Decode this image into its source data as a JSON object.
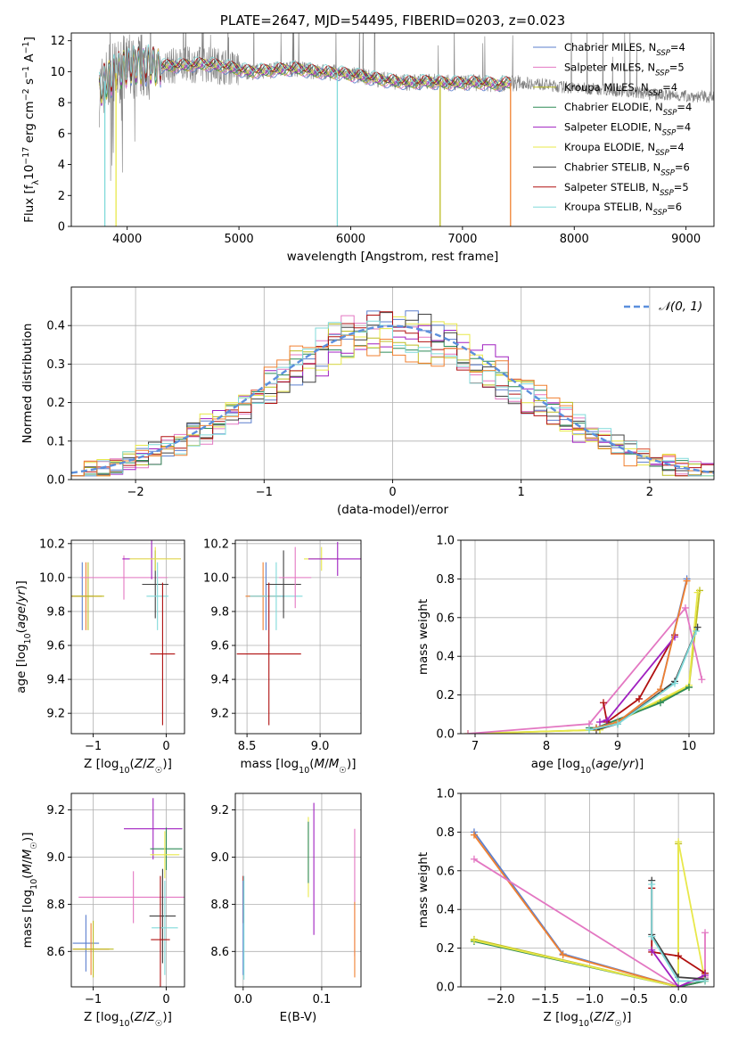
{
  "colors": {
    "Chabrier MILES": "#5b7fce",
    "Salpeter MILES": "#e377c2",
    "Kroupa MILES": "#bcbd22",
    "Chabrier ELODIE": "#2e8b57",
    "Salpeter ELODIE": "#a020c0",
    "Kroupa ELODIE": "#e8e84a",
    "Chabrier STELIB": "#404040",
    "Salpeter STELIB": "#b01010",
    "Kroupa STELIB": "#80dada",
    "observed": "#808080",
    "normal_curve": "#5b8fdd",
    "extra_orange": "#f08030"
  },
  "chart_data": [
    {
      "id": "spectrum",
      "type": "line",
      "title": "PLATE=2647, MJD=54495, FIBERID=0203, z=0.023",
      "xlabel": "wavelength [Angstrom, rest frame]",
      "ylabel": "Flux [f_λ 10^-17 erg cm^-2 s^-1 A^-1]",
      "xlim": [
        3500,
        9250
      ],
      "ylim": [
        0,
        12.5
      ],
      "xticks": [
        "4000",
        "5000",
        "6000",
        "7000",
        "8000",
        "9000"
      ],
      "yticks": [
        "0",
        "2",
        "4",
        "6",
        "8",
        "10",
        "12"
      ],
      "grid": false,
      "legend_position": "top-right",
      "legend": [
        {
          "label": "Chabrier MILES, N",
          "sub": "SSP",
          "tail": "=4",
          "key": "Chabrier MILES"
        },
        {
          "label": "Salpeter MILES, N",
          "sub": "SSP",
          "tail": "=5",
          "key": "Salpeter MILES"
        },
        {
          "label": "Kroupa MILES, N",
          "sub": "SSP",
          "tail": "=4",
          "key": "Kroupa MILES"
        },
        {
          "label": "Chabrier ELODIE, N",
          "sub": "SSP",
          "tail": "=4",
          "key": "Chabrier ELODIE"
        },
        {
          "label": "Salpeter ELODIE, N",
          "sub": "SSP",
          "tail": "=4",
          "key": "Salpeter ELODIE"
        },
        {
          "label": "Kroupa ELODIE, N",
          "sub": "SSP",
          "tail": "=4",
          "key": "Kroupa ELODIE"
        },
        {
          "label": "Chabrier STELIB, N",
          "sub": "SSP",
          "tail": "=6",
          "key": "Chabrier STELIB"
        },
        {
          "label": "Salpeter STELIB, N",
          "sub": "SSP",
          "tail": "=5",
          "key": "Salpeter STELIB"
        },
        {
          "label": "Kroupa STELIB, N",
          "sub": "SSP",
          "tail": "=6",
          "key": "Kroupa STELIB"
        }
      ],
      "continuum": {
        "x": [
          3750,
          3800,
          3900,
          4000,
          4100,
          4300,
          4500,
          4700,
          4900,
          5100,
          5300,
          5500,
          5700,
          5900,
          6100,
          6300,
          6500,
          6700,
          6900,
          7100,
          7300,
          7500,
          7700,
          7900,
          8100,
          8300,
          8500,
          8700,
          8900,
          9100,
          9250
        ],
        "y": [
          8.6,
          9.4,
          9.9,
          10.3,
          10.4,
          10.35,
          10.4,
          10.5,
          10.3,
          10.0,
          10.1,
          10.2,
          10.0,
          9.9,
          9.7,
          9.45,
          9.3,
          9.35,
          9.25,
          9.3,
          9.2,
          9.3,
          9.2,
          9.0,
          8.9,
          8.85,
          8.7,
          8.55,
          8.45,
          8.4,
          8.35
        ]
      },
      "model_x_range": [
        3750,
        7430
      ],
      "dips": [
        3800,
        3900,
        5880,
        6800,
        7430
      ]
    },
    {
      "id": "residuals",
      "type": "line",
      "xlabel": "(data-model)/error",
      "ylabel": "Normed distribution",
      "xlim": [
        -2.5,
        2.5
      ],
      "ylim": [
        0,
        0.5
      ],
      "xticks": [
        "−2",
        "−1",
        "0",
        "1",
        "2"
      ],
      "yticks": [
        "0.0",
        "0.1",
        "0.2",
        "0.3",
        "0.4"
      ],
      "grid": true,
      "legend_position": "top-right",
      "legend": [
        {
          "label": "𝒩(0, 1)",
          "key": "normal_curve"
        }
      ],
      "bin_width": 0.1
    },
    {
      "id": "age-vs-Z",
      "type": "scatter",
      "xlabel": "Z [log10(Z/Z☉)]",
      "ylabel": "age  [log10(age/yr)]",
      "xlim": [
        -1.3,
        0.25
      ],
      "ylim": [
        9.08,
        10.22
      ],
      "xticks": [
        "−1",
        "0"
      ],
      "yticks": [
        "9.2",
        "9.4",
        "9.6",
        "9.8",
        "10.0",
        "10.2"
      ],
      "grid": true,
      "points": [
        {
          "key": "Chabrier MILES",
          "x": -1.15,
          "y": 9.89,
          "xerr": 0.15,
          "yerr": 0.2
        },
        {
          "key": "extra_orange",
          "x": -1.1,
          "y": 9.89,
          "xerr": 0.22,
          "yerr": 0.2
        },
        {
          "key": "Kroupa MILES",
          "x": -1.07,
          "y": 9.89,
          "xerr": 0.22,
          "yerr": 0.2
        },
        {
          "key": "Salpeter MILES",
          "x": -0.58,
          "y": 10.0,
          "xerr": 0.6,
          "yerr": 0.13
        },
        {
          "key": "Salpeter ELODIE",
          "x": -0.2,
          "y": 10.11,
          "xerr": 0.4,
          "yerr": 0.12
        },
        {
          "key": "Chabrier STELIB",
          "x": -0.15,
          "y": 9.96,
          "xerr": 0.18,
          "yerr": 0.2
        },
        {
          "key": "Kroupa ELODIE",
          "x": -0.15,
          "y": 10.11,
          "xerr": 0.35,
          "yerr": 0.07
        },
        {
          "key": "Kroupa STELIB",
          "x": -0.12,
          "y": 9.89,
          "xerr": 0.15,
          "yerr": 0.2
        },
        {
          "key": "Salpeter STELIB",
          "x": -0.05,
          "y": 9.55,
          "xerr": 0.17,
          "yerr": 0.42
        }
      ]
    },
    {
      "id": "age-vs-mass",
      "type": "scatter",
      "xlabel": "mass [log10(M/M☉)]",
      "ylabel": "",
      "xlim": [
        8.42,
        9.28
      ],
      "ylim": [
        9.08,
        10.22
      ],
      "xticks": [
        "8.5",
        "9.0"
      ],
      "yticks": [
        "9.2",
        "9.4",
        "9.6",
        "9.8",
        "10.0",
        "10.2"
      ],
      "grid": true,
      "points": [
        {
          "key": "Chabrier MILES",
          "x": 8.63,
          "y": 9.89,
          "xerr": 0.12,
          "yerr": 0.2
        },
        {
          "key": "extra_orange",
          "x": 8.61,
          "y": 9.89,
          "xerr": 0.12,
          "yerr": 0.2
        },
        {
          "key": "Kroupa STELIB",
          "x": 8.7,
          "y": 9.89,
          "xerr": 0.18,
          "yerr": 0.2
        },
        {
          "key": "Chabrier STELIB",
          "x": 8.75,
          "y": 9.96,
          "xerr": 0.12,
          "yerr": 0.2
        },
        {
          "key": "Salpeter MILES",
          "x": 8.83,
          "y": 10.0,
          "xerr": 0.11,
          "yerr": 0.18
        },
        {
          "key": "Kroupa ELODIE",
          "x": 9.01,
          "y": 10.11,
          "xerr": 0.12,
          "yerr": 0.07
        },
        {
          "key": "Salpeter ELODIE",
          "x": 9.12,
          "y": 10.11,
          "xerr": 0.2,
          "yerr": 0.1
        },
        {
          "key": "Salpeter STELIB",
          "x": 8.65,
          "y": 9.55,
          "xerr": 0.22,
          "yerr": 0.42
        }
      ]
    },
    {
      "id": "weight-vs-age",
      "type": "line",
      "xlabel": "age  [log10(age/yr)]",
      "ylabel": "mass weight",
      "xlim": [
        6.8,
        10.35
      ],
      "ylim": [
        0,
        1.0
      ],
      "xticks": [
        "7",
        "8",
        "9",
        "10"
      ],
      "yticks": [
        "0.0",
        "0.2",
        "0.4",
        "0.6",
        "0.8",
        "1.0"
      ],
      "grid": true,
      "series": [
        {
          "key": "Kroupa MILES",
          "x": [
            6.9,
            8.75,
            10.0,
            10.15
          ],
          "y": [
            0.0,
            0.02,
            0.24,
            0.74
          ]
        },
        {
          "key": "Kroupa ELODIE",
          "x": [
            6.9,
            8.75,
            10.0,
            10.12
          ],
          "y": [
            0.0,
            0.02,
            0.25,
            0.73
          ]
        },
        {
          "key": "Chabrier ELODIE",
          "x": [
            8.6,
            8.7,
            9.6,
            10.0
          ],
          "y": [
            0.03,
            0.03,
            0.16,
            0.24
          ]
        },
        {
          "key": "Salpeter MILES",
          "x": [
            6.9,
            8.6,
            9.95,
            10.18
          ],
          "y": [
            0.0,
            0.05,
            0.65,
            0.28
          ]
        },
        {
          "key": "Salpeter STELIB",
          "x": [
            8.8,
            8.85,
            9.3,
            9.8
          ],
          "y": [
            0.16,
            0.06,
            0.18,
            0.51
          ]
        },
        {
          "key": "Salpeter ELODIE",
          "x": [
            8.75,
            8.85,
            9.8
          ],
          "y": [
            0.06,
            0.07,
            0.5
          ]
        },
        {
          "key": "Chabrier STELIB",
          "x": [
            8.7,
            9.0,
            9.8,
            10.12
          ],
          "y": [
            0.02,
            0.05,
            0.27,
            0.55
          ]
        },
        {
          "key": "Chabrier MILES",
          "x": [
            8.7,
            9.0,
            9.6,
            9.97
          ],
          "y": [
            0.03,
            0.06,
            0.23,
            0.8
          ]
        },
        {
          "key": "extra_orange",
          "x": [
            8.7,
            9.0,
            9.6,
            9.97
          ],
          "y": [
            0.03,
            0.06,
            0.23,
            0.79
          ]
        },
        {
          "key": "Kroupa STELIB",
          "x": [
            8.6,
            9.0,
            9.8,
            10.1
          ],
          "y": [
            0.02,
            0.05,
            0.26,
            0.53
          ]
        }
      ]
    },
    {
      "id": "mass-vs-Z",
      "type": "scatter",
      "xlabel": "Z [log10(Z/Z☉)]",
      "ylabel": "mass [log10(M/M☉)]",
      "xlim": [
        -1.3,
        0.25
      ],
      "ylim": [
        8.45,
        9.27
      ],
      "xticks": [
        "−1",
        "0"
      ],
      "yticks": [
        "8.6",
        "8.8",
        "9.0",
        "9.2"
      ],
      "grid": true,
      "points": [
        {
          "key": "Chabrier MILES",
          "x": -1.1,
          "y": 8.635,
          "xerr": 0.18,
          "yerr": 0.12
        },
        {
          "key": "extra_orange",
          "x": -1.03,
          "y": 8.61,
          "xerr": 0.25,
          "yerr": 0.11
        },
        {
          "key": "Kroupa MILES",
          "x": -1.0,
          "y": 8.61,
          "xerr": 0.28,
          "yerr": 0.12
        },
        {
          "key": "Salpeter MILES",
          "x": -0.45,
          "y": 8.83,
          "xerr": 0.75,
          "yerr": 0.11
        },
        {
          "key": "Salpeter ELODIE",
          "x": -0.18,
          "y": 9.12,
          "xerr": 0.4,
          "yerr": 0.13
        },
        {
          "key": "Chabrier ELODIE",
          "x": 0.0,
          "y": 9.035,
          "xerr": 0.22,
          "yerr": 0.09
        },
        {
          "key": "Kroupa ELODIE",
          "x": -0.02,
          "y": 9.01,
          "xerr": 0.2,
          "yerr": 0.1
        },
        {
          "key": "Chabrier STELIB",
          "x": -0.05,
          "y": 8.75,
          "xerr": 0.18,
          "yerr": 0.2
        },
        {
          "key": "Kroupa STELIB",
          "x": -0.02,
          "y": 8.7,
          "xerr": 0.18,
          "yerr": 0.2
        },
        {
          "key": "Salpeter STELIB",
          "x": -0.08,
          "y": 8.65,
          "xerr": 0.13,
          "yerr": 0.27
        }
      ]
    },
    {
      "id": "mass-vs-ebv",
      "type": "scatter",
      "xlabel": "E(B-V)",
      "ylabel": "",
      "xlim": [
        -0.01,
        0.15
      ],
      "ylim": [
        8.45,
        9.27
      ],
      "xticks": [
        "0.0",
        "0.1"
      ],
      "yticks": [
        "8.6",
        "8.8",
        "9.0",
        "9.2"
      ],
      "grid": true,
      "points": [
        {
          "key": "Salpeter STELIB",
          "x": 0.0,
          "y": 8.82,
          "xerr": 0,
          "yerr": 0.1
        },
        {
          "key": "Chabrier MILES",
          "x": 0.0,
          "y": 8.7,
          "xerr": 0,
          "yerr": 0.2
        },
        {
          "key": "Kroupa STELIB",
          "x": 0.001,
          "y": 8.7,
          "xerr": 0,
          "yerr": 0.22
        },
        {
          "key": "Kroupa ELODIE",
          "x": 0.083,
          "y": 9.0,
          "xerr": 0,
          "yerr": 0.17
        },
        {
          "key": "Chabrier ELODIE",
          "x": 0.083,
          "y": 9.02,
          "xerr": 0,
          "yerr": 0.13
        },
        {
          "key": "Salpeter ELODIE",
          "x": 0.09,
          "y": 8.95,
          "xerr": 0,
          "yerr": 0.28
        },
        {
          "key": "Salpeter MILES",
          "x": 0.142,
          "y": 8.85,
          "xerr": 0,
          "yerr": 0.27
        },
        {
          "key": "extra_orange",
          "x": 0.142,
          "y": 8.65,
          "xerr": 0,
          "yerr": 0.16
        }
      ]
    },
    {
      "id": "weight-vs-Z",
      "type": "line",
      "xlabel": "Z [log10(Z/Z☉)]",
      "ylabel": "mass weight",
      "xlim": [
        -2.45,
        0.4
      ],
      "ylim": [
        0,
        1.0
      ],
      "xticks": [
        "−2.0",
        "−1.5",
        "−1.0",
        "−0.5",
        "0.0"
      ],
      "yticks": [
        "0.0",
        "0.2",
        "0.4",
        "0.6",
        "0.8",
        "1.0"
      ],
      "grid": true,
      "series": [
        {
          "key": "Chabrier MILES",
          "x": [
            -2.3,
            -1.3,
            0.0,
            0.3
          ],
          "y": [
            0.8,
            0.17,
            0.0,
            0.03
          ]
        },
        {
          "key": "extra_orange",
          "x": [
            -2.3,
            -1.3,
            0.0,
            0.3
          ],
          "y": [
            0.785,
            0.165,
            0.0,
            0.03
          ]
        },
        {
          "key": "Salpeter MILES",
          "x": [
            -2.3,
            0.0,
            0.3,
            0.3
          ],
          "y": [
            0.66,
            0.0,
            0.05,
            0.28
          ]
        },
        {
          "key": "Kroupa MILES",
          "x": [
            -2.3,
            0.0,
            0.0
          ],
          "y": [
            0.245,
            0.0,
            0.74
          ]
        },
        {
          "key": "Chabrier ELODIE",
          "x": [
            -2.3,
            0.0,
            0.3
          ],
          "y": [
            0.235,
            0.0,
            0.03
          ]
        },
        {
          "key": "Kroupa ELODIE",
          "x": [
            -2.3,
            0.0,
            0.0,
            0.3
          ],
          "y": [
            0.24,
            0.0,
            0.75,
            0.03
          ]
        },
        {
          "key": "Salpeter STELIB",
          "x": [
            -0.3,
            -0.3,
            0.0,
            0.3
          ],
          "y": [
            0.51,
            0.18,
            0.16,
            0.07
          ]
        },
        {
          "key": "Salpeter ELODIE",
          "x": [
            -0.3,
            0.0,
            0.3
          ],
          "y": [
            0.19,
            0.0,
            0.06
          ]
        },
        {
          "key": "Chabrier STELIB",
          "x": [
            -0.3,
            -0.3,
            0.0,
            0.3
          ],
          "y": [
            0.55,
            0.27,
            0.05,
            0.04
          ]
        },
        {
          "key": "Kroupa STELIB",
          "x": [
            -0.3,
            -0.3,
            0.0,
            0.3
          ],
          "y": [
            0.53,
            0.26,
            0.03,
            0.03
          ]
        }
      ]
    }
  ]
}
